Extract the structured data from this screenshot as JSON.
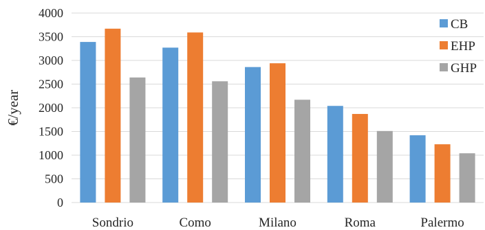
{
  "chart_data": {
    "type": "bar",
    "title": "",
    "xlabel": "",
    "ylabel": "€/year",
    "ylim": [
      0,
      4000
    ],
    "yticks": [
      0,
      500,
      1000,
      1500,
      2000,
      2500,
      3000,
      3500,
      4000
    ],
    "grid": "horizontal",
    "legend_position": "top-right",
    "categories": [
      "Sondrio",
      "Como",
      "Milano",
      "Roma",
      "Palermo"
    ],
    "series": [
      {
        "name": "CB",
        "color": "#5B9BD5",
        "values": [
          3390,
          3270,
          2860,
          2040,
          1420
        ]
      },
      {
        "name": "EHP",
        "color": "#ED7D31",
        "values": [
          3670,
          3590,
          2940,
          1870,
          1230
        ]
      },
      {
        "name": "GHP",
        "color": "#A5A5A5",
        "values": [
          2640,
          2560,
          2170,
          1510,
          1040
        ]
      }
    ]
  }
}
